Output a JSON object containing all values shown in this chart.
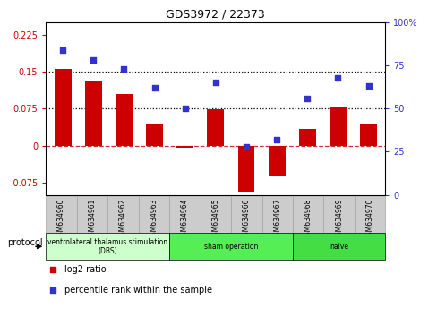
{
  "title": "GDS3972 / 22373",
  "samples": [
    "GSM634960",
    "GSM634961",
    "GSM634962",
    "GSM634963",
    "GSM634964",
    "GSM634965",
    "GSM634966",
    "GSM634967",
    "GSM634968",
    "GSM634969",
    "GSM634970"
  ],
  "log2_ratio": [
    0.155,
    0.13,
    0.105,
    0.045,
    -0.005,
    0.073,
    -0.093,
    -0.062,
    0.033,
    0.078,
    0.043
  ],
  "percentile_rank": [
    84,
    78,
    73,
    62,
    50,
    65,
    28,
    32,
    56,
    68,
    63
  ],
  "ylim_left": [
    -0.1,
    0.25
  ],
  "ylim_right": [
    0,
    100
  ],
  "yticks_left": [
    -0.075,
    0,
    0.075,
    0.15,
    0.225
  ],
  "yticks_right": [
    0,
    25,
    50,
    75,
    100
  ],
  "hlines": [
    0.075,
    0.15
  ],
  "bar_color": "#cc0000",
  "dot_color": "#3333cc",
  "bar_width": 0.55,
  "groups": [
    {
      "label": "ventrolateral thalamus stimulation\n(DBS)",
      "start": 0,
      "end": 3,
      "color": "#ccffcc"
    },
    {
      "label": "sham operation",
      "start": 4,
      "end": 7,
      "color": "#55ee55"
    },
    {
      "label": "naive",
      "start": 8,
      "end": 10,
      "color": "#44dd44"
    }
  ],
  "protocol_label": "protocol",
  "legend_items": [
    {
      "color": "#cc0000",
      "label": "log2 ratio"
    },
    {
      "color": "#3333cc",
      "label": "percentile rank within the sample"
    }
  ],
  "cell_color": "#cccccc",
  "cell_edge_color": "#999999"
}
